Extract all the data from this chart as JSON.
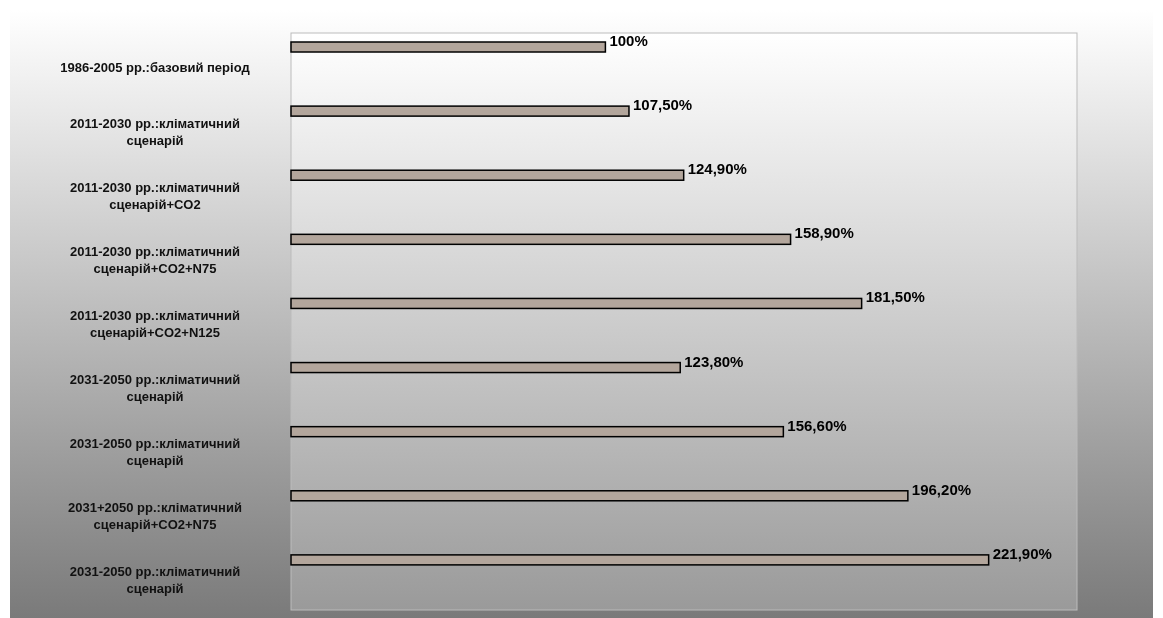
{
  "chart_data": {
    "type": "bar",
    "orientation": "horizontal",
    "categories": [
      "1986-2005 рр.:базовий період",
      "2011-2030 рр.:кліматичний сценарій",
      "2011-2030 рр.:кліматичний сценарій+CO2",
      "2011-2030 рр.:кліматичний сценарій+CO2+N75",
      "2011-2030 рр.:кліматичний сценарій+CO2+N125",
      "2031-2050 рр.:кліматичний сценарій",
      "2031-2050 рр.:кліматичний сценарій",
      "2031+2050 рр.:кліматичний сценарій+CO2+N75",
      "2031-2050 рр.:кліматичний сценарій"
    ],
    "values": [
      100,
      107.5,
      124.9,
      158.9,
      181.5,
      123.8,
      156.6,
      196.2,
      221.9
    ],
    "value_labels": [
      "100%",
      "107,50%",
      "124,90%",
      "158,90%",
      "181,50%",
      "123,80%",
      "156,60%",
      "196,20%",
      "221,90%"
    ],
    "color": "#b3a69c",
    "xlim": [
      0,
      250
    ],
    "tick_labels": "y"
  }
}
